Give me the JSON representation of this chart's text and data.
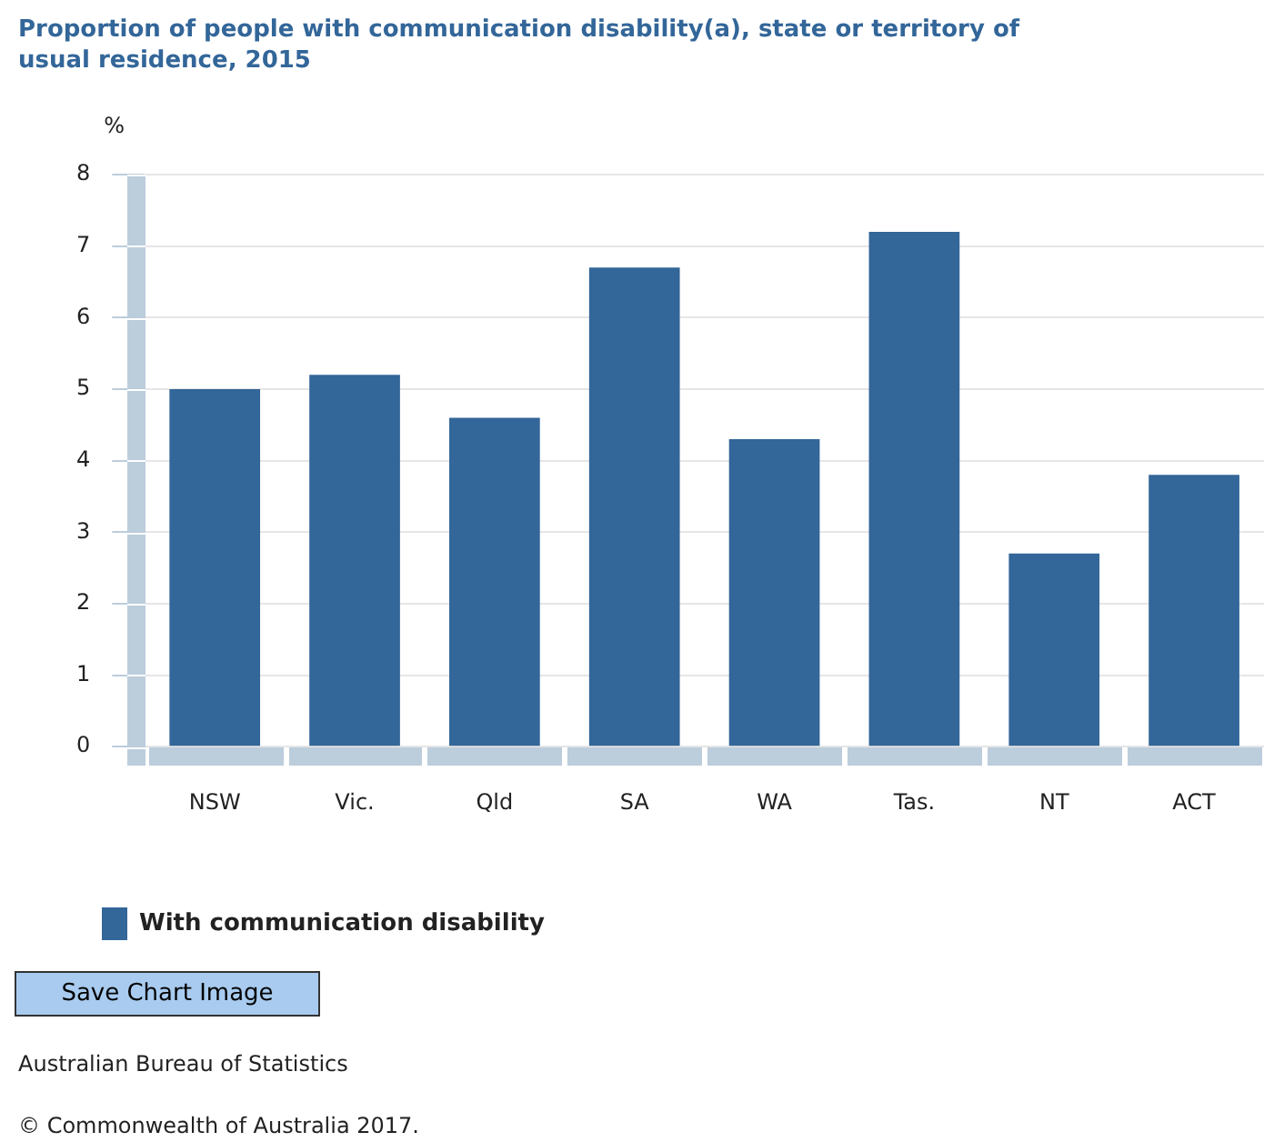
{
  "chart_data": {
    "type": "bar",
    "title": "Proportion of people with communication disability(a), state or territory of usual residence, 2015",
    "ylabel": "%",
    "categories": [
      "NSW",
      "Vic.",
      "Qld",
      "SA",
      "WA",
      "Tas.",
      "NT",
      "ACT"
    ],
    "series": [
      {
        "name": "With communication disability",
        "color": "#336699",
        "values": [
          5.0,
          5.2,
          4.6,
          6.7,
          4.3,
          7.2,
          2.7,
          3.8
        ]
      }
    ],
    "ylim": [
      0,
      8
    ],
    "yticks": [
      0,
      1,
      2,
      3,
      4,
      5,
      6,
      7,
      8
    ],
    "grid": "y",
    "legend": "bottom left",
    "annotations": [
      "Save Chart Image",
      "Australian Bureau of Statistics",
      "© Commonwealth of Australia 2017."
    ]
  }
}
